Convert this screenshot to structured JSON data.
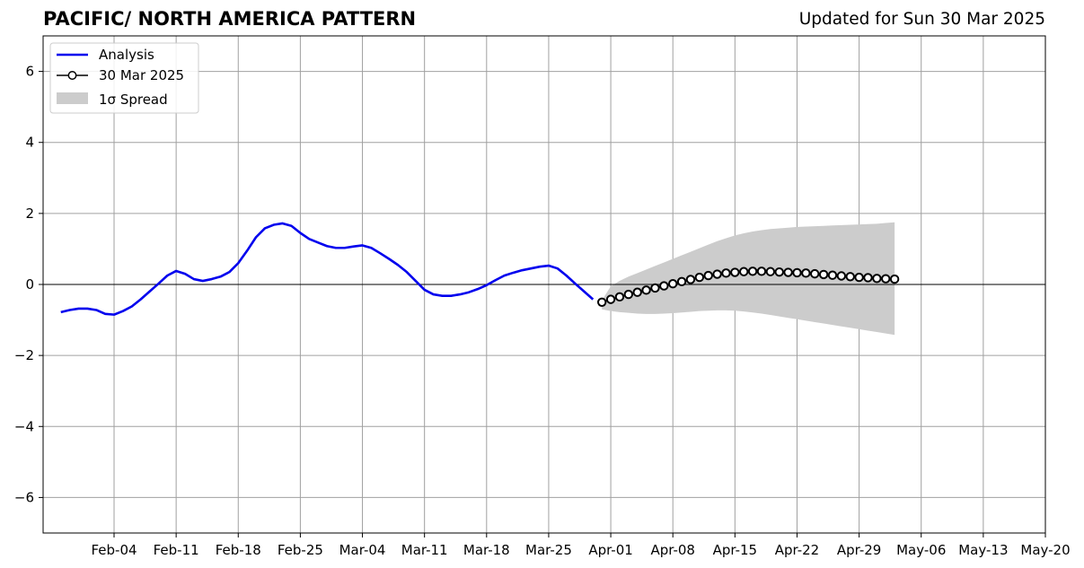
{
  "header": {
    "title": "PACIFIC/ NORTH AMERICA PATTERN",
    "updated": "Updated for Sun 30 Mar 2025"
  },
  "chart_data": {
    "type": "line",
    "title": "PACIFIC/ NORTH AMERICA PATTERN",
    "subtitle": "Updated for Sun 30 Mar 2025",
    "xlabel": "",
    "ylabel": "",
    "xlim": [
      "2025-01-27",
      "2025-05-20"
    ],
    "ylim": [
      -7,
      7
    ],
    "x_ticks": [
      "2025-02-04",
      "2025-02-11",
      "2025-02-18",
      "2025-02-25",
      "2025-03-04",
      "2025-03-11",
      "2025-03-18",
      "2025-03-25",
      "2025-04-01",
      "2025-04-08",
      "2025-04-15",
      "2025-04-22",
      "2025-04-29",
      "2025-05-06",
      "2025-05-13",
      "2025-05-20"
    ],
    "x_tick_labels": [
      "Feb-04",
      "Feb-11",
      "Feb-18",
      "Feb-25",
      "Mar-04",
      "Mar-11",
      "Mar-18",
      "Mar-25",
      "Apr-01",
      "Apr-08",
      "Apr-15",
      "Apr-22",
      "Apr-29",
      "May-06",
      "May-13",
      "May-20"
    ],
    "y_ticks": [
      -6,
      -4,
      -2,
      0,
      2,
      4,
      6
    ],
    "y_tick_labels": [
      "−6",
      "−4",
      "−2",
      "0",
      "2",
      "4",
      "6"
    ],
    "grid": true,
    "legend_position": "top-left",
    "legend": [
      "Analysis",
      "30 Mar 2025",
      "1σ Spread"
    ],
    "colors": {
      "analysis": "#0000ee",
      "forecast": "#000000",
      "spread": "#cccccc",
      "grid": "#a0a0a0"
    },
    "series": [
      {
        "name": "Analysis",
        "style": "line",
        "x": [
          "2025-01-29",
          "2025-01-30",
          "2025-01-31",
          "2025-02-01",
          "2025-02-02",
          "2025-02-03",
          "2025-02-04",
          "2025-02-05",
          "2025-02-06",
          "2025-02-07",
          "2025-02-08",
          "2025-02-09",
          "2025-02-10",
          "2025-02-11",
          "2025-02-12",
          "2025-02-13",
          "2025-02-14",
          "2025-02-15",
          "2025-02-16",
          "2025-02-17",
          "2025-02-18",
          "2025-02-19",
          "2025-02-20",
          "2025-02-21",
          "2025-02-22",
          "2025-02-23",
          "2025-02-24",
          "2025-02-25",
          "2025-02-26",
          "2025-02-27",
          "2025-02-28",
          "2025-03-01",
          "2025-03-02",
          "2025-03-03",
          "2025-03-04",
          "2025-03-05",
          "2025-03-06",
          "2025-03-07",
          "2025-03-08",
          "2025-03-09",
          "2025-03-10",
          "2025-03-11",
          "2025-03-12",
          "2025-03-13",
          "2025-03-14",
          "2025-03-15",
          "2025-03-16",
          "2025-03-17",
          "2025-03-18",
          "2025-03-19",
          "2025-03-20",
          "2025-03-21",
          "2025-03-22",
          "2025-03-23",
          "2025-03-24",
          "2025-03-25",
          "2025-03-26",
          "2025-03-27",
          "2025-03-28",
          "2025-03-29",
          "2025-03-30"
        ],
        "values": [
          -0.78,
          -0.72,
          -0.68,
          -0.68,
          -0.72,
          -0.83,
          -0.85,
          -0.75,
          -0.62,
          -0.42,
          -0.2,
          0.02,
          0.25,
          0.38,
          0.3,
          0.15,
          0.1,
          0.15,
          0.22,
          0.35,
          0.6,
          0.95,
          1.33,
          1.58,
          1.68,
          1.72,
          1.65,
          1.45,
          1.28,
          1.18,
          1.08,
          1.03,
          1.03,
          1.07,
          1.1,
          1.03,
          0.88,
          0.72,
          0.55,
          0.35,
          0.1,
          -0.15,
          -0.28,
          -0.32,
          -0.32,
          -0.28,
          -0.22,
          -0.13,
          -0.02,
          0.12,
          0.25,
          0.33,
          0.4,
          0.45,
          0.5,
          0.53,
          0.45,
          0.25,
          0.02,
          -0.2,
          -0.42
        ]
      },
      {
        "name": "30 Mar 2025",
        "style": "line-markers",
        "x": [
          "2025-03-31",
          "2025-04-01",
          "2025-04-02",
          "2025-04-03",
          "2025-04-04",
          "2025-04-05",
          "2025-04-06",
          "2025-04-07",
          "2025-04-08",
          "2025-04-09",
          "2025-04-10",
          "2025-04-11",
          "2025-04-12",
          "2025-04-13",
          "2025-04-14",
          "2025-04-15",
          "2025-04-16",
          "2025-04-17",
          "2025-04-18",
          "2025-04-19",
          "2025-04-20",
          "2025-04-21",
          "2025-04-22",
          "2025-04-23",
          "2025-04-24",
          "2025-04-25",
          "2025-04-26",
          "2025-04-27",
          "2025-04-28",
          "2025-04-29",
          "2025-04-30",
          "2025-05-01",
          "2025-05-02",
          "2025-05-03"
        ],
        "values": [
          -0.5,
          -0.42,
          -0.35,
          -0.28,
          -0.22,
          -0.16,
          -0.1,
          -0.04,
          0.02,
          0.08,
          0.14,
          0.2,
          0.25,
          0.29,
          0.32,
          0.34,
          0.36,
          0.37,
          0.37,
          0.36,
          0.35,
          0.34,
          0.33,
          0.32,
          0.3,
          0.28,
          0.26,
          0.24,
          0.22,
          0.2,
          0.19,
          0.17,
          0.16,
          0.15
        ]
      }
    ],
    "spread": {
      "name": "1σ Spread",
      "x": [
        "2025-03-31",
        "2025-04-01",
        "2025-04-02",
        "2025-04-03",
        "2025-04-04",
        "2025-04-05",
        "2025-04-06",
        "2025-04-07",
        "2025-04-08",
        "2025-04-09",
        "2025-04-10",
        "2025-04-11",
        "2025-04-12",
        "2025-04-13",
        "2025-04-14",
        "2025-04-15",
        "2025-04-16",
        "2025-04-17",
        "2025-04-18",
        "2025-04-19",
        "2025-04-20",
        "2025-04-21",
        "2025-04-22",
        "2025-04-23",
        "2025-04-24",
        "2025-04-25",
        "2025-04-26",
        "2025-04-27",
        "2025-04-28",
        "2025-04-29",
        "2025-04-30",
        "2025-05-01",
        "2025-05-02",
        "2025-05-03"
      ],
      "upper": [
        -0.45,
        -0.05,
        0.1,
        0.22,
        0.32,
        0.42,
        0.52,
        0.62,
        0.72,
        0.82,
        0.92,
        1.02,
        1.12,
        1.22,
        1.3,
        1.38,
        1.44,
        1.49,
        1.53,
        1.56,
        1.58,
        1.6,
        1.62,
        1.63,
        1.64,
        1.65,
        1.66,
        1.67,
        1.68,
        1.69,
        1.7,
        1.71,
        1.73,
        1.75
      ],
      "lower": [
        -0.7,
        -0.75,
        -0.78,
        -0.8,
        -0.82,
        -0.83,
        -0.83,
        -0.82,
        -0.81,
        -0.79,
        -0.77,
        -0.75,
        -0.74,
        -0.73,
        -0.73,
        -0.74,
        -0.76,
        -0.79,
        -0.82,
        -0.86,
        -0.9,
        -0.94,
        -0.98,
        -1.02,
        -1.06,
        -1.1,
        -1.14,
        -1.18,
        -1.22,
        -1.26,
        -1.3,
        -1.34,
        -1.38,
        -1.42
      ]
    }
  }
}
